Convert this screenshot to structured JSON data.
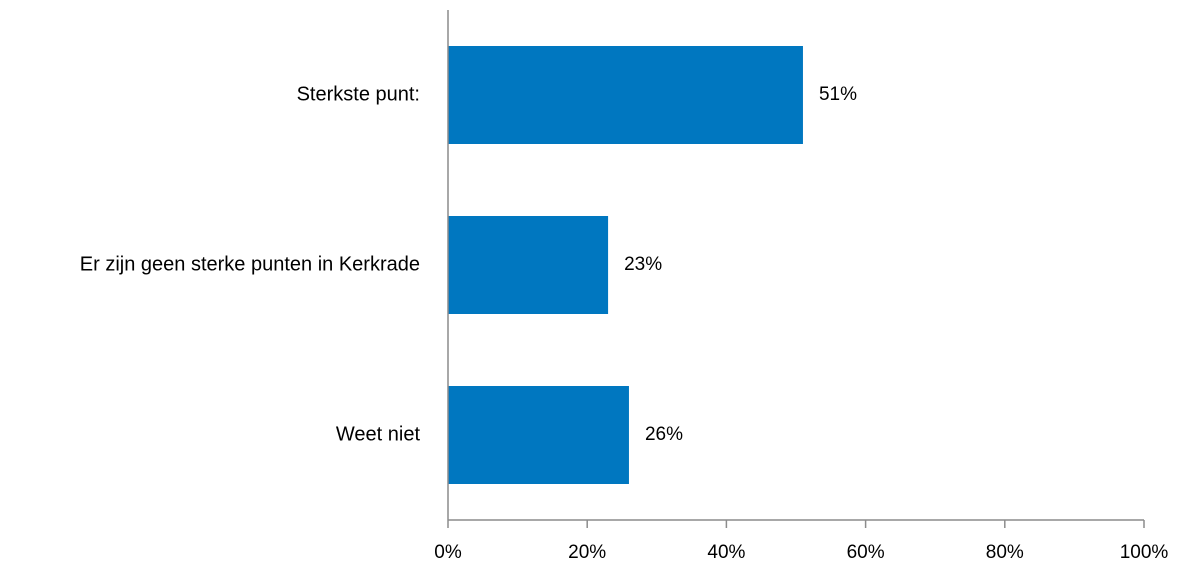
{
  "chart_data": {
    "type": "bar",
    "orientation": "horizontal",
    "categories": [
      "Sterkste punt:",
      "Er zijn geen sterke punten in Kerkrade",
      "Weet niet"
    ],
    "values": [
      51,
      23,
      26
    ],
    "data_labels": [
      "51%",
      "23%",
      "26%"
    ],
    "xlim": [
      0,
      100
    ],
    "x_ticks": [
      0,
      20,
      40,
      60,
      80,
      100
    ],
    "x_tick_labels": [
      "0%",
      "20%",
      "40%",
      "60%",
      "80%",
      "100%"
    ],
    "title": "",
    "xlabel": "",
    "ylabel": "",
    "grid": false,
    "legend": "none",
    "bar_color": "#0077C0"
  }
}
